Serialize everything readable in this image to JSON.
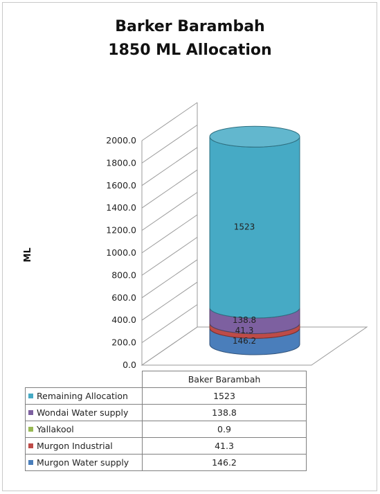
{
  "chart_data": {
    "type": "bar",
    "stacked": true,
    "three_d": "cylinder",
    "title_line1": "Barker Barambah",
    "title_line2": "1850 ML Allocation",
    "ylabel": "ML",
    "xlabel": "",
    "ylim": [
      0,
      2000
    ],
    "yticks": [
      "0.0",
      "200.0",
      "400.0",
      "600.0",
      "800.0",
      "1000.0",
      "1200.0",
      "1400.0",
      "1600.0",
      "1800.0",
      "2000.0"
    ],
    "categories": [
      "Baker Barambah"
    ],
    "gridlines": true,
    "legend": "data-table",
    "series": [
      {
        "name": "Murgon Water supply",
        "values": [
          146.2
        ],
        "label": "146.2",
        "color": "#4a7ebb"
      },
      {
        "name": "Murgon Industrial",
        "values": [
          41.3
        ],
        "label": "41.3",
        "color": "#be4b48"
      },
      {
        "name": "Yallakool",
        "values": [
          0.9
        ],
        "label": "",
        "color": "#98b954"
      },
      {
        "name": "Wondai Water supply",
        "values": [
          138.8
        ],
        "label": "138.8",
        "color": "#7d60a0"
      },
      {
        "name": "Remaining Allocation",
        "values": [
          1523
        ],
        "label": "1523",
        "color": "#46aac5"
      }
    ],
    "table_rows": [
      {
        "label": "Remaining Allocation",
        "value": "1523",
        "color": "#46aac5"
      },
      {
        "label": "Wondai Water supply",
        "value": "138.8",
        "color": "#7d60a0"
      },
      {
        "label": "Yallakool",
        "value": "0.9",
        "color": "#98b954"
      },
      {
        "label": "Murgon Industrial",
        "value": "41.3",
        "color": "#be4b48"
      },
      {
        "label": "Murgon Water supply",
        "value": "146.2",
        "color": "#4a7ebb"
      }
    ]
  }
}
